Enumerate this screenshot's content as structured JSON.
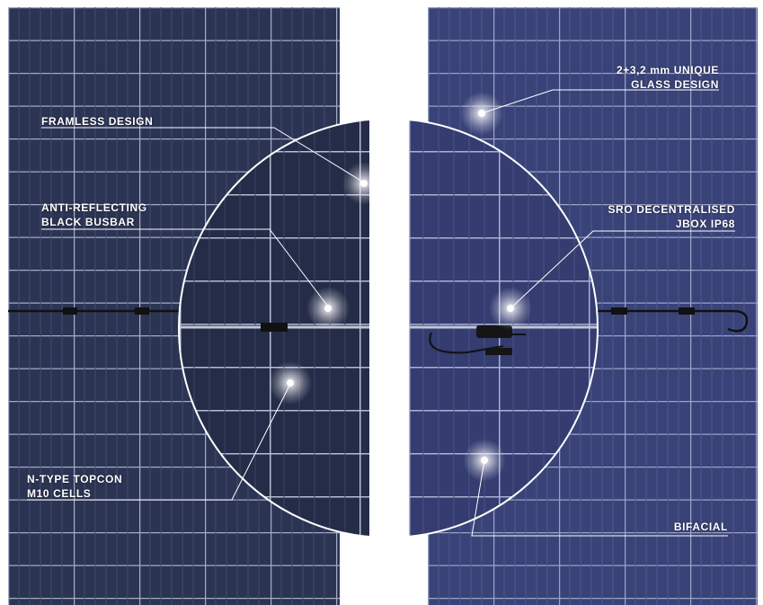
{
  "callouts": {
    "frameless": {
      "line1": "FRAMLESS DESIGN"
    },
    "busbar": {
      "line1": "ANTI-REFLECTING",
      "line2": "BLACK BUSBAR"
    },
    "topcon": {
      "line1": "N-TYPE TOPCON",
      "line2": "M10 CELLS"
    },
    "glass": {
      "line1": "2+3,2 mm UNIQUE",
      "line2": "GLASS DESIGN"
    },
    "jbox": {
      "line1": "SRO DECENTRALISED",
      "line2": "JBOX IP68"
    },
    "bifacial": {
      "line1": "BIFACIAL"
    }
  },
  "colors": {
    "front_panel": "#2a3352",
    "rear_panel": "#3b437a",
    "cell_line": "#8c96b4",
    "callout_text": "#ffffff"
  }
}
